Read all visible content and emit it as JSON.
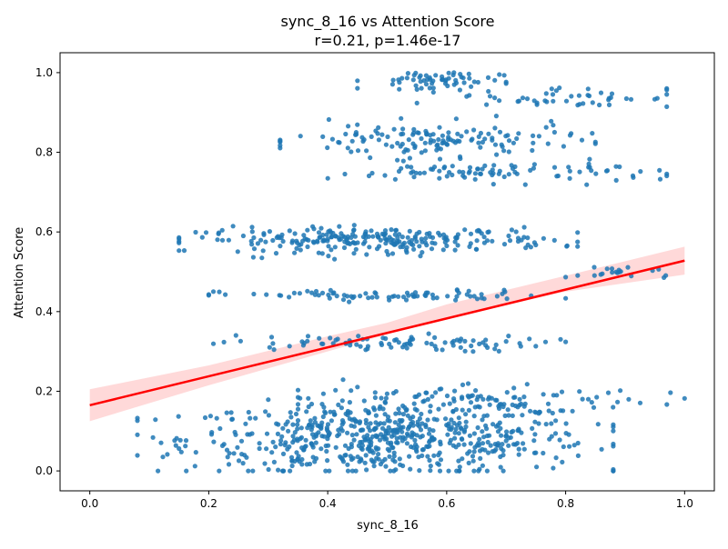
{
  "chart_data": {
    "type": "scatter",
    "title": "sync_8_16 vs Attention Score",
    "subtitle": "r=0.21, p=1.46e-17",
    "xlabel": "sync_8_16",
    "ylabel": "Attention Score",
    "xlim": [
      -0.05,
      1.05
    ],
    "ylim": [
      -0.05,
      1.05
    ],
    "x_ticks": [
      "0.0",
      "0.2",
      "0.4",
      "0.6",
      "0.8",
      "1.0"
    ],
    "y_ticks": [
      "0.0",
      "0.2",
      "0.4",
      "0.6",
      "0.8",
      "1.0"
    ],
    "grid": false,
    "point_color": "#1f77b4",
    "line_color": "#ff0000",
    "band_color": "#ffcccc",
    "regression_line": {
      "x": [
        0.0,
        1.0
      ],
      "y": [
        0.165,
        0.528
      ]
    },
    "confidence_band": {
      "x": [
        0.0,
        0.2,
        0.4,
        0.5,
        0.6,
        0.8,
        1.0
      ],
      "lower": [
        0.125,
        0.215,
        0.3,
        0.343,
        0.383,
        0.45,
        0.493
      ],
      "upper": [
        0.205,
        0.265,
        0.338,
        0.372,
        0.418,
        0.49,
        0.563
      ]
    },
    "clusters": [
      {
        "center": 0.08,
        "spread": 0.065,
        "xmin": 0.08,
        "xmax": 0.88,
        "xmean": 0.5,
        "xsd": 0.17,
        "count": 620
      },
      {
        "center": 0.18,
        "spread": 0.03,
        "xmin": 0.35,
        "xmax": 1.0,
        "xmean": 0.65,
        "xsd": 0.15,
        "count": 110
      },
      {
        "center": 0.32,
        "spread": 0.015,
        "xmin": 0.15,
        "xmax": 0.8,
        "xmean": 0.48,
        "xsd": 0.14,
        "count": 90
      },
      {
        "center": 0.44,
        "spread": 0.01,
        "xmin": 0.2,
        "xmax": 0.8,
        "xmean": 0.5,
        "xsd": 0.14,
        "count": 80
      },
      {
        "center": 0.5,
        "spread": 0.015,
        "xmin": 0.8,
        "xmax": 1.0,
        "xmean": 0.9,
        "xsd": 0.05,
        "count": 20
      },
      {
        "center": 0.58,
        "spread": 0.022,
        "xmin": 0.15,
        "xmax": 0.82,
        "xmean": 0.48,
        "xsd": 0.15,
        "count": 260
      },
      {
        "center": 0.75,
        "spread": 0.018,
        "xmin": 0.37,
        "xmax": 0.97,
        "xmean": 0.68,
        "xsd": 0.14,
        "count": 90
      },
      {
        "center": 0.83,
        "spread": 0.03,
        "xmin": 0.32,
        "xmax": 0.85,
        "xmean": 0.58,
        "xsd": 0.12,
        "count": 140
      },
      {
        "center": 0.94,
        "spread": 0.02,
        "xmin": 0.55,
        "xmax": 0.97,
        "xmean": 0.8,
        "xsd": 0.1,
        "count": 50
      },
      {
        "center": 0.98,
        "spread": 0.018,
        "xmin": 0.45,
        "xmax": 0.7,
        "xmean": 0.57,
        "xsd": 0.06,
        "count": 60
      }
    ]
  }
}
